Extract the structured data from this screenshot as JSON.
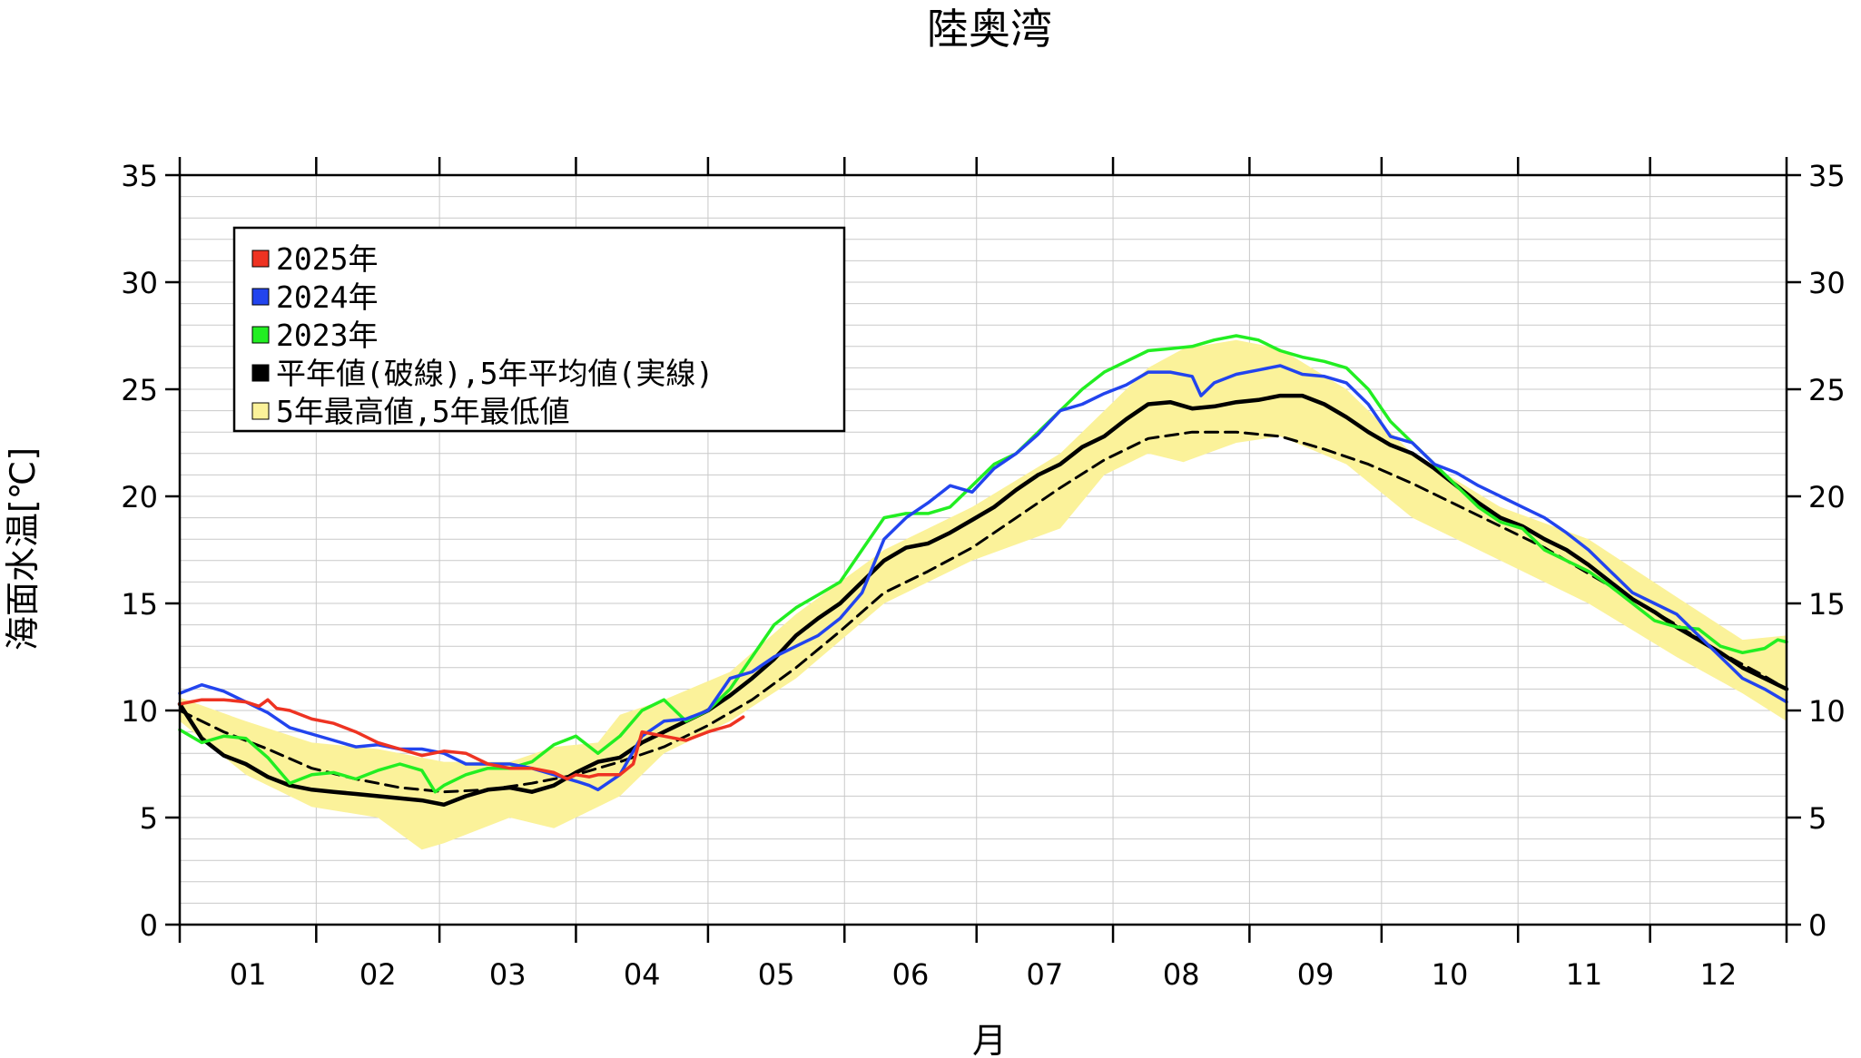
{
  "chart_data": {
    "type": "line",
    "title": "陸奥湾",
    "xlabel": "月",
    "ylabel": "海面水温[℃]",
    "x_ticks": [
      "01",
      "02",
      "03",
      "04",
      "05",
      "06",
      "07",
      "08",
      "09",
      "10",
      "11",
      "12"
    ],
    "y_ticks": [
      "0",
      "5",
      "10",
      "15",
      "20",
      "25",
      "30",
      "35"
    ],
    "ylim": [
      0,
      35
    ],
    "xlim": [
      0,
      365
    ],
    "grid": true,
    "legend_position": "top-left",
    "legend": [
      {
        "label": "2025年",
        "color": "#ee3322",
        "swatch": "#ee3322"
      },
      {
        "label": "2024年",
        "color": "#2244ee",
        "swatch": "#2244ee"
      },
      {
        "label": "2023年",
        "color": "#22ee22",
        "swatch": "#22ee22"
      },
      {
        "label": "平年値(破線),5年平均値(実線)",
        "color": "#000000",
        "swatch": "#000000"
      },
      {
        "label": "5年最高値,5年最低値",
        "color": "#fbf29a",
        "swatch": "#fbf29a"
      }
    ],
    "band": {
      "x": [
        0,
        15,
        30,
        45,
        55,
        60,
        75,
        85,
        95,
        100,
        110,
        125,
        140,
        160,
        180,
        200,
        210,
        220,
        228,
        240,
        250,
        265,
        280,
        300,
        320,
        340,
        355,
        365
      ],
      "upper": [
        10.6,
        9.5,
        8.5,
        8.2,
        7.8,
        7.6,
        7.6,
        8.3,
        8.5,
        9.8,
        10.5,
        11.8,
        14.5,
        17.5,
        19.5,
        22.0,
        24.0,
        26.0,
        26.9,
        27.3,
        26.9,
        25.0,
        22.0,
        19.5,
        18.0,
        15.3,
        13.3,
        13.5
      ],
      "lower": [
        9.5,
        7.0,
        5.5,
        5.0,
        3.5,
        3.8,
        5.0,
        4.5,
        5.5,
        6.0,
        8.0,
        9.5,
        11.5,
        15.0,
        17.0,
        18.5,
        21.0,
        22.0,
        21.6,
        22.5,
        22.8,
        21.5,
        19.0,
        17.0,
        15.0,
        12.5,
        10.8,
        9.5
      ]
    },
    "series": [
      {
        "name": "2025年",
        "color": "#ee3322",
        "width": 3.5,
        "dash": "",
        "x": [
          0,
          5,
          10,
          15,
          18,
          20,
          22,
          25,
          30,
          35,
          40,
          45,
          50,
          55,
          60,
          65,
          70,
          75,
          80,
          85,
          88,
          90,
          93,
          95,
          100,
          103,
          105,
          110,
          115,
          120,
          125,
          128
        ],
        "y": [
          10.3,
          10.5,
          10.5,
          10.4,
          10.2,
          10.5,
          10.1,
          10.0,
          9.6,
          9.4,
          9.0,
          8.5,
          8.2,
          7.9,
          8.1,
          8.0,
          7.5,
          7.3,
          7.3,
          7.1,
          6.8,
          7.0,
          6.9,
          7.0,
          7.0,
          7.5,
          9.0,
          8.8,
          8.6,
          9.0,
          9.3,
          9.7
        ]
      },
      {
        "name": "2024年",
        "color": "#2244ee",
        "width": 3.5,
        "dash": "",
        "x": [
          0,
          5,
          10,
          15,
          20,
          25,
          30,
          35,
          40,
          45,
          50,
          55,
          60,
          65,
          70,
          75,
          80,
          85,
          90,
          93,
          95,
          100,
          105,
          110,
          115,
          120,
          125,
          130,
          135,
          140,
          145,
          150,
          155,
          160,
          165,
          170,
          175,
          180,
          185,
          190,
          195,
          200,
          205,
          210,
          215,
          220,
          225,
          230,
          232,
          235,
          240,
          245,
          250,
          255,
          260,
          265,
          270,
          275,
          280,
          285,
          290,
          295,
          300,
          305,
          310,
          315,
          320,
          325,
          330,
          335,
          340,
          345,
          350,
          355,
          360,
          365
        ],
        "y": [
          10.8,
          11.2,
          10.9,
          10.4,
          9.9,
          9.2,
          8.9,
          8.6,
          8.3,
          8.4,
          8.2,
          8.2,
          8.0,
          7.5,
          7.5,
          7.5,
          7.3,
          7.0,
          6.7,
          6.5,
          6.3,
          7.0,
          8.8,
          9.5,
          9.6,
          10.0,
          11.5,
          11.8,
          12.5,
          13.0,
          13.5,
          14.3,
          15.5,
          18.0,
          19.0,
          19.7,
          20.5,
          20.2,
          21.3,
          22.0,
          22.9,
          24.0,
          24.3,
          24.8,
          25.2,
          25.8,
          25.8,
          25.6,
          24.7,
          25.3,
          25.7,
          25.9,
          26.1,
          25.7,
          25.6,
          25.3,
          24.3,
          22.8,
          22.5,
          21.5,
          21.1,
          20.5,
          20.0,
          19.5,
          19.0,
          18.3,
          17.5,
          16.5,
          15.5,
          15.0,
          14.5,
          13.5,
          12.5,
          11.5,
          11.0,
          10.4
        ]
      },
      {
        "name": "2023年",
        "color": "#22ee22",
        "width": 3.5,
        "dash": "",
        "x": [
          0,
          5,
          10,
          15,
          20,
          25,
          30,
          35,
          40,
          45,
          50,
          55,
          58,
          60,
          65,
          70,
          75,
          80,
          85,
          90,
          95,
          100,
          105,
          110,
          115,
          120,
          125,
          130,
          135,
          140,
          145,
          150,
          155,
          160,
          165,
          170,
          175,
          180,
          185,
          190,
          195,
          200,
          205,
          210,
          215,
          220,
          225,
          230,
          235,
          240,
          245,
          250,
          255,
          260,
          265,
          270,
          275,
          280,
          285,
          290,
          295,
          300,
          305,
          310,
          315,
          320,
          325,
          330,
          335,
          340,
          345,
          350,
          355,
          360,
          363,
          365
        ],
        "y": [
          9.1,
          8.5,
          8.8,
          8.7,
          7.8,
          6.6,
          7.0,
          7.1,
          6.8,
          7.2,
          7.5,
          7.2,
          6.2,
          6.5,
          7.0,
          7.3,
          7.3,
          7.6,
          8.4,
          8.8,
          8.0,
          8.8,
          10.0,
          10.5,
          9.5,
          10.0,
          11.0,
          12.5,
          14.0,
          14.8,
          15.4,
          16.0,
          17.5,
          19.0,
          19.2,
          19.2,
          19.5,
          20.5,
          21.5,
          22.0,
          23.0,
          24.0,
          25.0,
          25.8,
          26.3,
          26.8,
          26.9,
          27.0,
          27.3,
          27.5,
          27.3,
          26.8,
          26.5,
          26.3,
          26.0,
          25.0,
          23.5,
          22.5,
          21.5,
          20.5,
          19.5,
          18.8,
          18.5,
          17.5,
          17.0,
          16.5,
          15.8,
          15.0,
          14.2,
          13.9,
          13.8,
          13.0,
          12.7,
          12.9,
          13.3,
          13.2
        ]
      },
      {
        "name": "5年平均値",
        "color": "#000000",
        "width": 4.5,
        "dash": "",
        "x": [
          0,
          5,
          10,
          15,
          20,
          25,
          30,
          35,
          40,
          45,
          50,
          55,
          60,
          65,
          70,
          75,
          80,
          85,
          90,
          95,
          100,
          105,
          110,
          115,
          120,
          125,
          130,
          135,
          140,
          145,
          150,
          155,
          160,
          165,
          170,
          175,
          180,
          185,
          190,
          195,
          200,
          205,
          210,
          215,
          220,
          225,
          230,
          235,
          240,
          245,
          250,
          255,
          260,
          265,
          270,
          275,
          280,
          285,
          290,
          295,
          300,
          305,
          310,
          315,
          320,
          325,
          330,
          335,
          340,
          345,
          350,
          355,
          360,
          365
        ],
        "y": [
          10.3,
          8.7,
          7.9,
          7.5,
          6.9,
          6.5,
          6.3,
          6.2,
          6.1,
          6.0,
          5.9,
          5.8,
          5.6,
          6.0,
          6.3,
          6.4,
          6.2,
          6.5,
          7.1,
          7.6,
          7.8,
          8.5,
          9.0,
          9.5,
          10.0,
          10.7,
          11.5,
          12.4,
          13.5,
          14.3,
          15.0,
          16.0,
          17.0,
          17.6,
          17.8,
          18.3,
          18.9,
          19.5,
          20.3,
          21.0,
          21.5,
          22.3,
          22.8,
          23.6,
          24.3,
          24.4,
          24.1,
          24.2,
          24.4,
          24.5,
          24.7,
          24.7,
          24.3,
          23.7,
          23.0,
          22.4,
          22.0,
          21.3,
          20.5,
          19.7,
          19.0,
          18.6,
          18.0,
          17.5,
          16.8,
          16.0,
          15.2,
          14.6,
          13.9,
          13.3,
          12.7,
          12.0,
          11.5,
          11.0
        ]
      },
      {
        "name": "平年値",
        "color": "#000000",
        "width": 3,
        "dash": "14,8",
        "x": [
          0,
          10,
          20,
          30,
          40,
          50,
          60,
          70,
          80,
          90,
          100,
          110,
          120,
          130,
          140,
          150,
          160,
          170,
          180,
          190,
          200,
          210,
          220,
          230,
          240,
          250,
          260,
          270,
          280,
          290,
          300,
          310,
          320,
          330,
          340,
          350,
          360,
          365
        ],
        "y": [
          10.0,
          9.0,
          8.2,
          7.3,
          6.8,
          6.4,
          6.2,
          6.3,
          6.6,
          7.0,
          7.6,
          8.3,
          9.3,
          10.5,
          12.0,
          13.7,
          15.5,
          16.5,
          17.6,
          19.0,
          20.4,
          21.7,
          22.7,
          23.0,
          23.0,
          22.8,
          22.2,
          21.5,
          20.6,
          19.6,
          18.6,
          17.6,
          16.4,
          15.2,
          14.0,
          12.7,
          11.6,
          11.0
        ]
      }
    ]
  }
}
